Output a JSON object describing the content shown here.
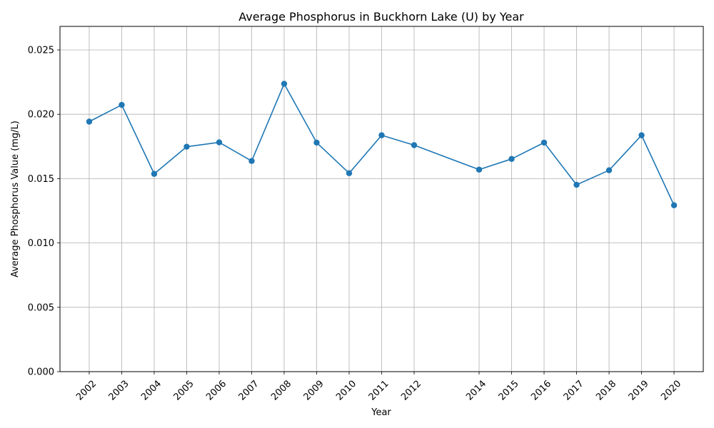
{
  "chart_data": {
    "type": "line",
    "title": "Average Phosphorus in Buckhorn Lake (U) by Year",
    "xlabel": "Year",
    "ylabel": "Average Phosphorus Value (mg/L)",
    "x": [
      2002,
      2003,
      2004,
      2005,
      2006,
      2007,
      2008,
      2009,
      2010,
      2011,
      2012,
      2014,
      2015,
      2016,
      2017,
      2018,
      2019,
      2020
    ],
    "x_ticks": [
      "2002",
      "2003",
      "2004",
      "2005",
      "2006",
      "2007",
      "2008",
      "2009",
      "2010",
      "2011",
      "2012",
      "2014",
      "2015",
      "2016",
      "2017",
      "2018",
      "2019",
      "2020"
    ],
    "y_ticks": [
      "0.000",
      "0.005",
      "0.010",
      "0.015",
      "0.020",
      "0.025"
    ],
    "series": [
      {
        "values": [
          0.01943,
          0.02073,
          0.01537,
          0.01748,
          0.01782,
          0.01637,
          0.02237,
          0.0178,
          0.01542,
          0.01837,
          0.0176,
          0.0157,
          0.01653,
          0.0178,
          0.01452,
          0.01565,
          0.01837,
          0.01293
        ],
        "color": "#1f77b4"
      }
    ],
    "xlim": [
      2001.1,
      2020.9
    ],
    "ylim": [
      0,
      0.02683
    ],
    "grid": true,
    "line_color": "#1f77b4",
    "grid_color": "#b0b0b0"
  }
}
